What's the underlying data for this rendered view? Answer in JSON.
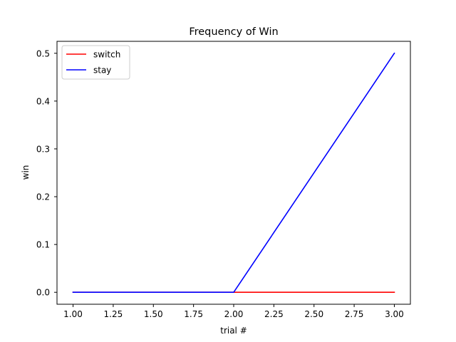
{
  "chart_data": {
    "type": "line",
    "title": "Frequency of Win",
    "xlabel": "trial #",
    "ylabel": "win",
    "xlim": [
      0.9,
      3.1
    ],
    "ylim": [
      -0.025,
      0.525
    ],
    "xticks": [
      "1.00",
      "1.25",
      "1.50",
      "1.75",
      "2.00",
      "2.25",
      "2.50",
      "2.75",
      "3.00"
    ],
    "yticks": [
      "0.0",
      "0.1",
      "0.2",
      "0.3",
      "0.4",
      "0.5"
    ],
    "grid": false,
    "legend_position": "top-left",
    "x": [
      1,
      2,
      3
    ],
    "series": [
      {
        "name": "switch",
        "color": "#ff0000",
        "values": [
          0,
          0,
          0
        ]
      },
      {
        "name": "stay",
        "color": "#0000ff",
        "values": [
          0,
          0,
          0.5
        ]
      }
    ]
  }
}
